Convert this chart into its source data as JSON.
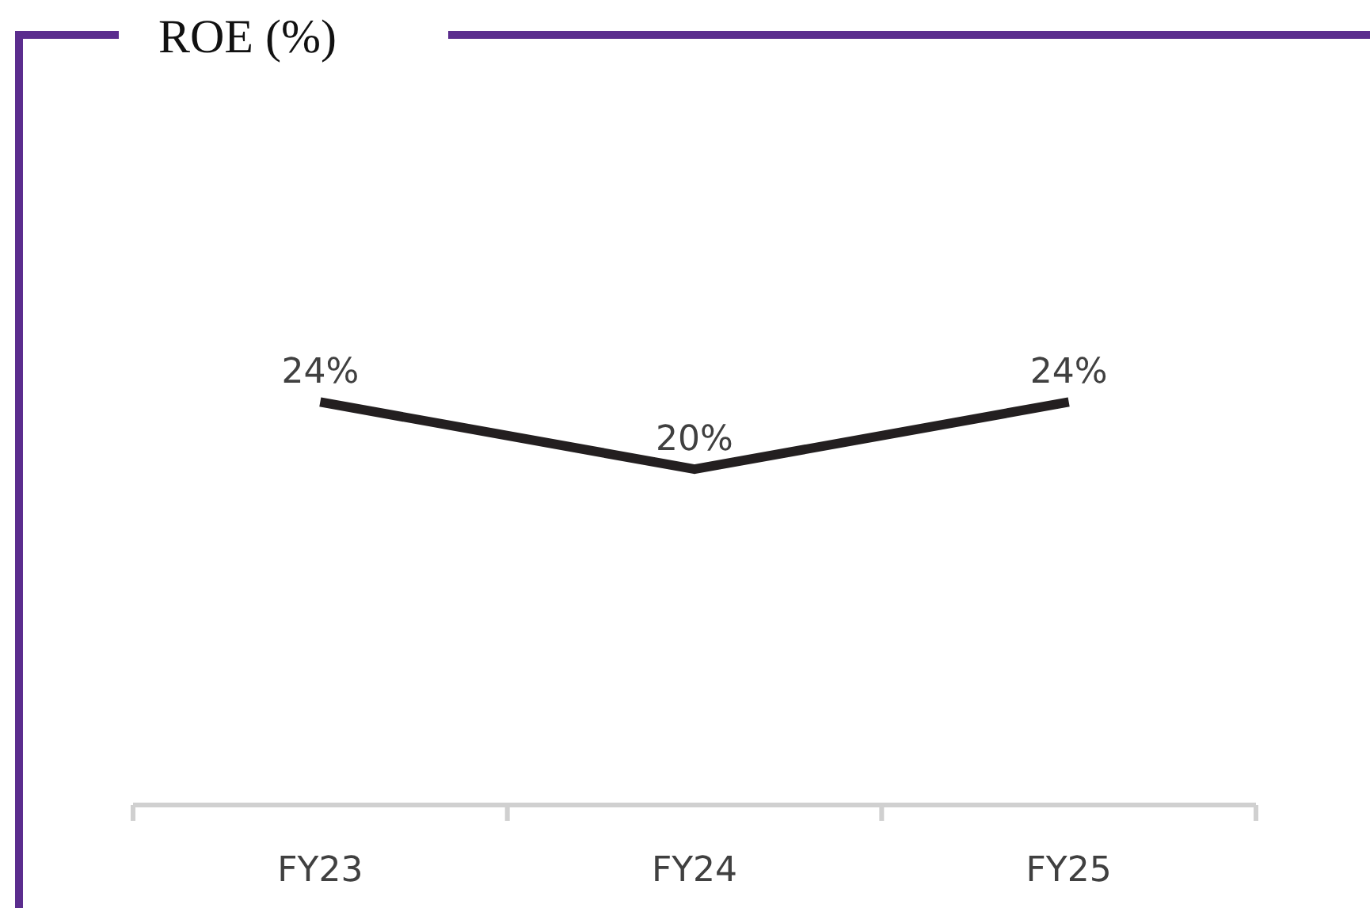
{
  "chart_data": {
    "type": "line",
    "title": "ROE (%)",
    "categories": [
      "FY23",
      "FY24",
      "FY25"
    ],
    "series": [
      {
        "color": "#231f20",
        "values": [
          24,
          20,
          24
        ],
        "value_labels": [
          "24%",
          "20%",
          "24%"
        ]
      }
    ],
    "tick_labels": "x",
    "line_style": "solid"
  }
}
